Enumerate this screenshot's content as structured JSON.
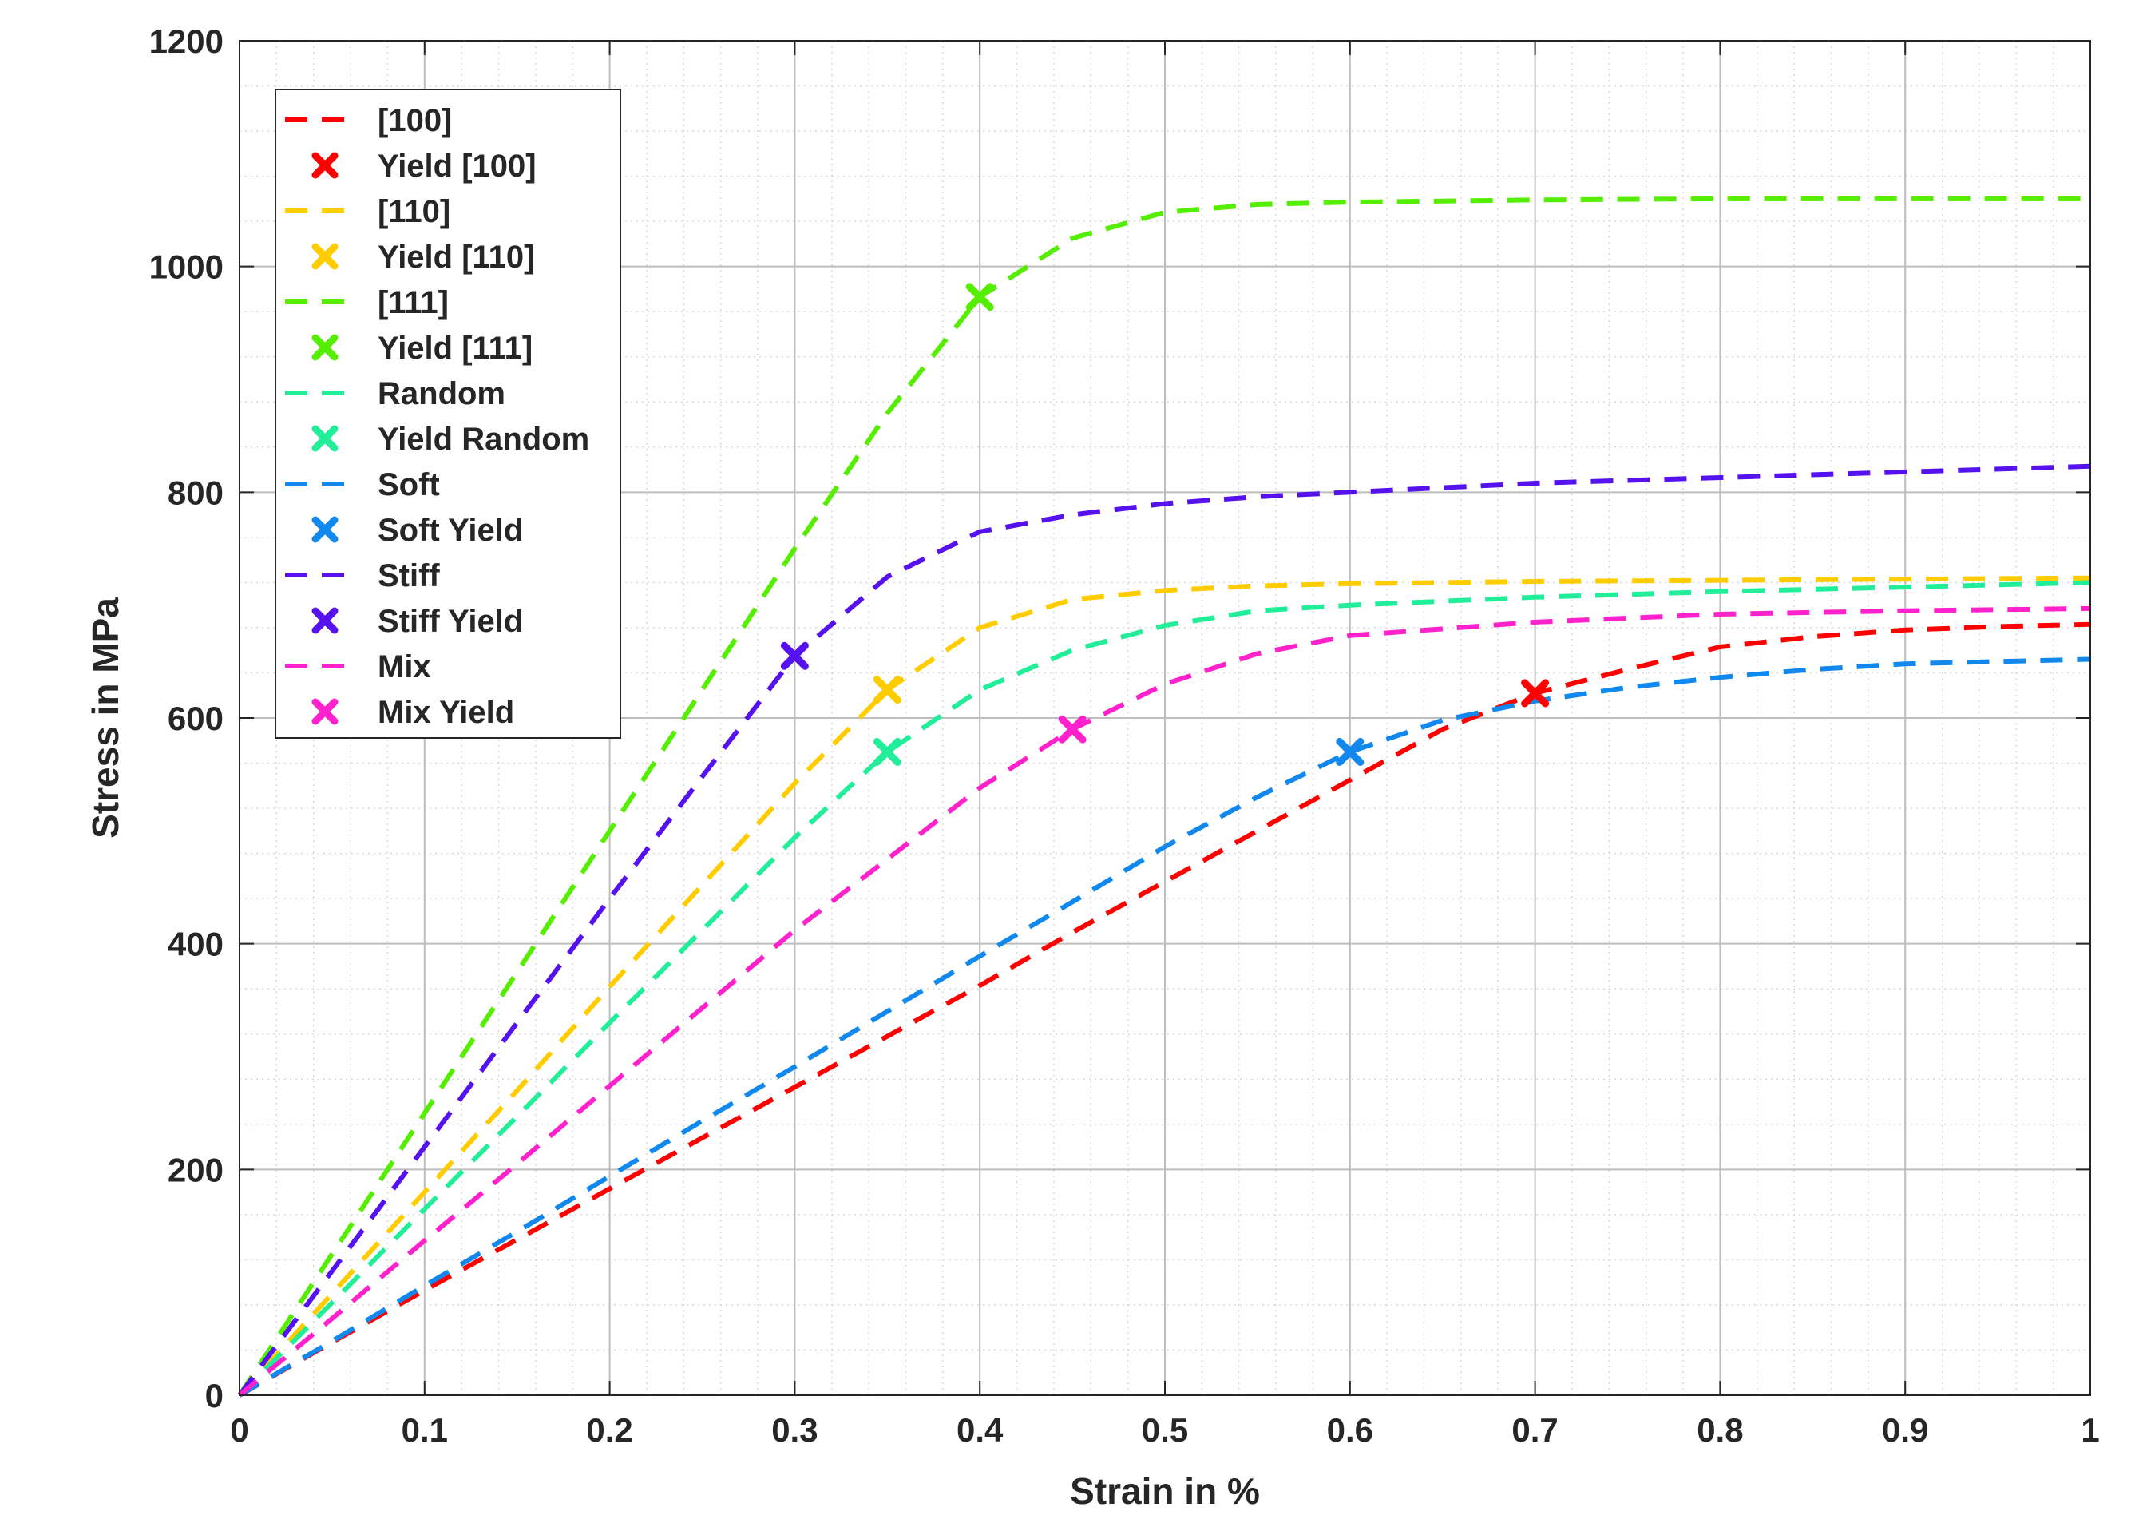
{
  "chart_data": {
    "type": "line",
    "title": "",
    "xlabel": "Strain in %",
    "ylabel": "Stress in MPa",
    "xlim": [
      0,
      1
    ],
    "ylim": [
      0,
      1200
    ],
    "xticks": [
      "0",
      "0.1",
      "0.2",
      "0.3",
      "0.4",
      "0.5",
      "0.6",
      "0.7",
      "0.8",
      "0.9",
      "1"
    ],
    "yticks": [
      "0",
      "200",
      "400",
      "600",
      "800",
      "1000",
      "1200"
    ],
    "grid": "major and minor",
    "legend_position": "top-left",
    "series": [
      {
        "name": "[100]",
        "yield_label": "Yield [100]",
        "color": "#ff0000",
        "x": [
          0,
          0.05,
          0.1,
          0.15,
          0.2,
          0.25,
          0.3,
          0.35,
          0.4,
          0.45,
          0.5,
          0.55,
          0.6,
          0.65,
          0.7,
          0.75,
          0.8,
          0.85,
          0.9,
          0.95,
          1.0
        ],
        "y": [
          0,
          47,
          93,
          138,
          183,
          228,
          273,
          318,
          363,
          410,
          455,
          500,
          545,
          590,
          622,
          643,
          663,
          672,
          678,
          681,
          683
        ],
        "yield": [
          0.7,
          622
        ]
      },
      {
        "name": "[110]",
        "yield_label": "Yield [110]",
        "color": "#ffcc00",
        "x": [
          0,
          0.05,
          0.1,
          0.15,
          0.2,
          0.25,
          0.3,
          0.35,
          0.4,
          0.45,
          0.5,
          0.55,
          0.6,
          0.7,
          0.8,
          0.9,
          1.0
        ],
        "y": [
          0,
          90,
          180,
          270,
          362,
          452,
          542,
          625,
          680,
          705,
          713,
          717,
          719,
          721,
          722,
          723,
          724
        ],
        "yield": [
          0.35,
          625
        ]
      },
      {
        "name": "[111]",
        "yield_label": "Yield [111]",
        "color": "#55ee00",
        "x": [
          0,
          0.05,
          0.1,
          0.15,
          0.2,
          0.25,
          0.3,
          0.35,
          0.4,
          0.45,
          0.5,
          0.55,
          0.6,
          0.7,
          0.8,
          0.9,
          1.0
        ],
        "y": [
          0,
          125,
          250,
          375,
          500,
          625,
          750,
          870,
          973,
          1025,
          1048,
          1055,
          1057,
          1059,
          1060,
          1060,
          1060
        ],
        "yield": [
          0.4,
          973
        ]
      },
      {
        "name": "Random",
        "yield_label": "Yield Random",
        "color": "#22ee99",
        "x": [
          0,
          0.05,
          0.1,
          0.15,
          0.2,
          0.25,
          0.3,
          0.35,
          0.4,
          0.45,
          0.5,
          0.55,
          0.6,
          0.7,
          0.8,
          0.9,
          1.0
        ],
        "y": [
          0,
          82,
          165,
          247,
          330,
          412,
          494,
          570,
          625,
          660,
          682,
          695,
          700,
          707,
          712,
          716,
          720
        ],
        "yield": [
          0.35,
          570
        ]
      },
      {
        "name": "Soft",
        "yield_label": "Soft Yield",
        "color": "#1188ee",
        "x": [
          0,
          0.05,
          0.1,
          0.15,
          0.2,
          0.25,
          0.3,
          0.35,
          0.4,
          0.45,
          0.5,
          0.55,
          0.6,
          0.65,
          0.7,
          0.75,
          0.8,
          0.85,
          0.9,
          0.95,
          1.0
        ],
        "y": [
          0,
          48,
          97,
          145,
          194,
          243,
          291,
          340,
          389,
          437,
          486,
          530,
          570,
          598,
          615,
          627,
          636,
          643,
          648,
          650,
          652
        ],
        "yield": [
          0.6,
          570
        ]
      },
      {
        "name": "Stiff",
        "yield_label": "Stiff Yield",
        "color": "#5511ee",
        "x": [
          0,
          0.05,
          0.1,
          0.15,
          0.2,
          0.25,
          0.3,
          0.35,
          0.4,
          0.45,
          0.5,
          0.55,
          0.6,
          0.7,
          0.8,
          0.9,
          1.0
        ],
        "y": [
          0,
          110,
          220,
          330,
          440,
          548,
          655,
          725,
          765,
          780,
          790,
          796,
          800,
          808,
          813,
          818,
          823
        ],
        "yield": [
          0.3,
          655
        ]
      },
      {
        "name": "Mix",
        "yield_label": "Mix Yield",
        "color": "#ff22cc",
        "x": [
          0,
          0.05,
          0.1,
          0.15,
          0.2,
          0.25,
          0.3,
          0.35,
          0.4,
          0.45,
          0.5,
          0.55,
          0.6,
          0.7,
          0.8,
          0.9,
          1.0
        ],
        "y": [
          0,
          68,
          137,
          205,
          274,
          343,
          412,
          475,
          538,
          590,
          630,
          657,
          673,
          685,
          692,
          695,
          697
        ],
        "yield": [
          0.45,
          590
        ]
      }
    ]
  }
}
